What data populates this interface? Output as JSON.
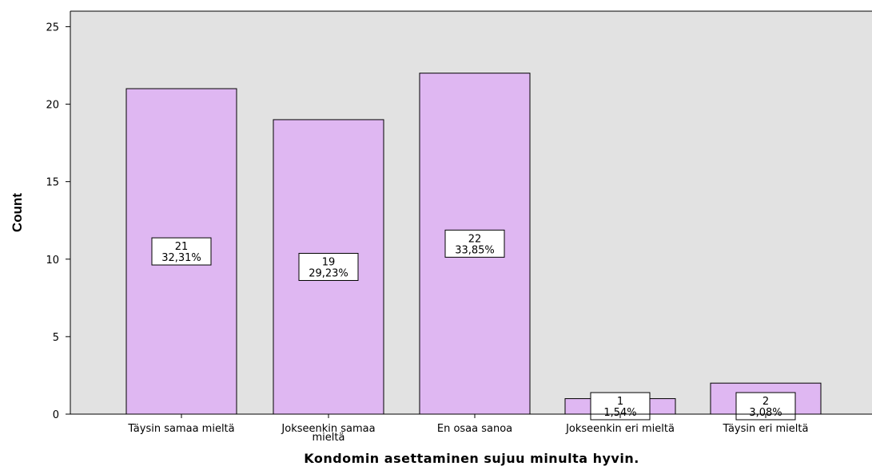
{
  "chart_data": {
    "type": "bar",
    "categories": [
      [
        "Täysin samaa mieltä"
      ],
      [
        "Jokseenkin samaa",
        "mieltä"
      ],
      [
        "En osaa sanoa"
      ],
      [
        "Jokseenkin eri mieltä"
      ],
      [
        "Täysin eri mieltä"
      ]
    ],
    "values": [
      21,
      19,
      22,
      1,
      2
    ],
    "percent_labels": [
      "32,31%",
      "29,23%",
      "33,85%",
      "1,54%",
      "3,08%"
    ],
    "title": "",
    "xlabel": "Kondomin asettaminen sujuu minulta hyvin.",
    "ylabel": "Count",
    "ylim": [
      0,
      26
    ],
    "yticks": [
      0,
      5,
      10,
      15,
      20,
      25
    ],
    "bar_color": "#dfb7f2",
    "plot_background": "#e2e2e2",
    "grid": false,
    "legend": "none"
  }
}
